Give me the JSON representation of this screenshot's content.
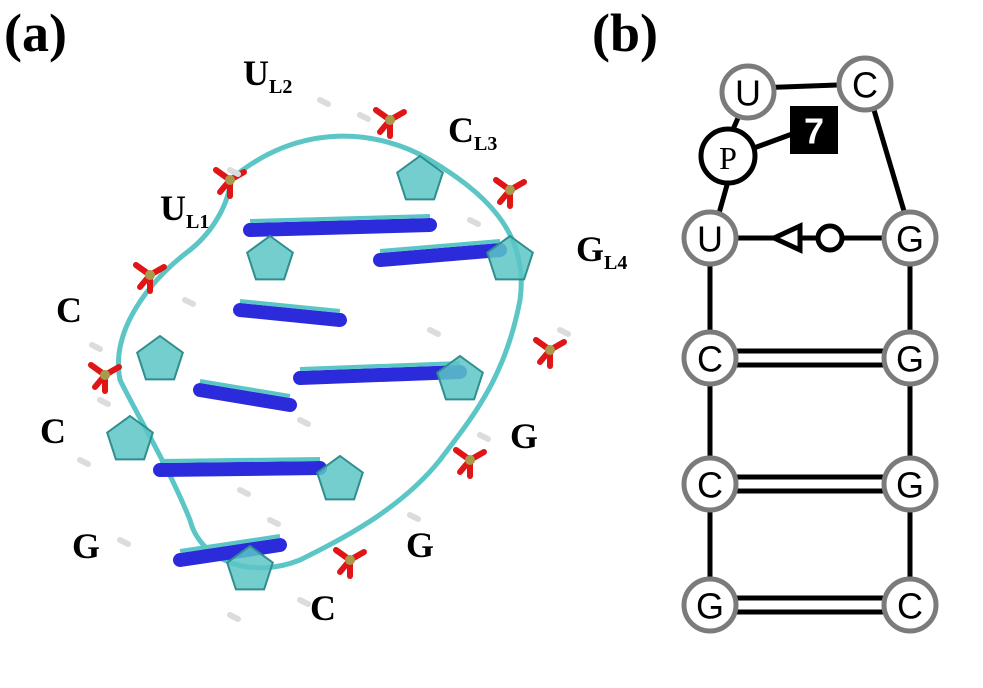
{
  "panel_a": {
    "label": "(a)",
    "residue_labels": [
      {
        "base": "U",
        "sub": "L2"
      },
      {
        "base": "C",
        "sub": "L3"
      },
      {
        "base": "U",
        "sub": "L1"
      },
      {
        "base": "G",
        "sub": "L4"
      },
      {
        "base": "C",
        "sub": ""
      },
      {
        "base": "C",
        "sub": ""
      },
      {
        "base": "G",
        "sub": ""
      },
      {
        "base": "G",
        "sub": ""
      },
      {
        "base": "G",
        "sub": ""
      },
      {
        "base": "C",
        "sub": ""
      }
    ],
    "colors": {
      "carbon": "#5cc6c6",
      "nitrogen": "#2b2bdc",
      "oxygen": "#e01515",
      "phosphorus": "#a89a4a",
      "hydrogen": "#ffffff"
    }
  },
  "panel_b": {
    "label": "(b)",
    "loop_nodes": {
      "u_top": "U",
      "c_top": "C",
      "p": "P"
    },
    "annotation_badge": "7",
    "pairs": [
      {
        "left": "U",
        "right": "G",
        "type": "non-canonical"
      },
      {
        "left": "C",
        "right": "G",
        "type": "watson-crick"
      },
      {
        "left": "C",
        "right": "G",
        "type": "watson-crick"
      },
      {
        "left": "G",
        "right": "C",
        "type": "watson-crick"
      }
    ]
  }
}
